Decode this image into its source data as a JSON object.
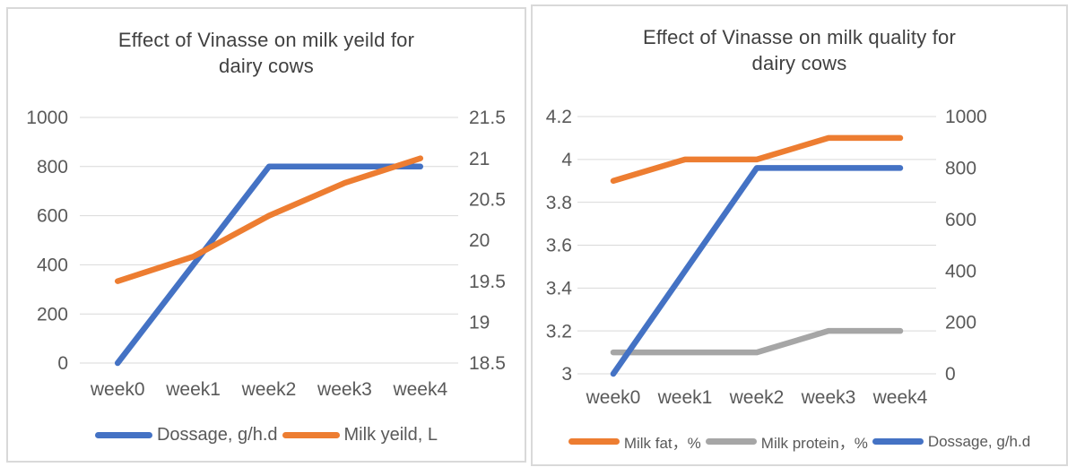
{
  "page": {
    "background": "#ffffff",
    "panel_border_color": "#d9d9d9"
  },
  "colors": {
    "accent_blue": "#4472C4",
    "accent_orange": "#ED7D31",
    "accent_gray": "#A6A6A6",
    "gridline": "#D9D9D9",
    "tick_text": "#595959",
    "title_text": "#404040"
  },
  "chart_data": [
    {
      "type": "line",
      "title": "Effect of Vinasse on milk yeild for dairy cows",
      "title_lines": [
        "Effect of Vinasse on milk yeild for",
        "dairy cows"
      ],
      "categories": [
        "week0",
        "week1",
        "week2",
        "week3",
        "week4"
      ],
      "series": [
        {
          "name": "Dossage, g/h.d",
          "color": "#4472C4",
          "axis": "left",
          "values": [
            0,
            400,
            800,
            800,
            800
          ]
        },
        {
          "name": "Milk yeild, L",
          "color": "#ED7D31",
          "axis": "right",
          "values": [
            19.5,
            19.8,
            20.3,
            20.7,
            21
          ]
        }
      ],
      "left_axis": {
        "min": 0,
        "max": 1000,
        "step": 200,
        "ticks_top_to_bottom": [
          "1000",
          "800",
          "600",
          "400",
          "200",
          "0"
        ]
      },
      "right_axis": {
        "min": 18.5,
        "max": 21.5,
        "step": 0.5,
        "ticks_top_to_bottom": [
          "21.5",
          "21",
          "20.5",
          "20",
          "19.5",
          "19",
          "18.5"
        ]
      },
      "grid": "horizontal-from-left-axis",
      "legend_position": "bottom"
    },
    {
      "type": "line",
      "title": "Effect of Vinasse on milk quality for dairy cows",
      "title_lines": [
        "Effect of Vinasse on milk quality for",
        "dairy cows"
      ],
      "categories": [
        "week0",
        "week1",
        "week2",
        "week3",
        "week4"
      ],
      "series": [
        {
          "name": "Milk fat，%",
          "color": "#ED7D31",
          "axis": "left",
          "values": [
            3.9,
            4,
            4,
            4.1,
            4.1
          ]
        },
        {
          "name": "Milk protein，%",
          "color": "#A6A6A6",
          "axis": "left",
          "values": [
            3.1,
            3.1,
            3.1,
            3.2,
            3.2
          ]
        },
        {
          "name": "Dossage, g/h.d",
          "color": "#4472C4",
          "axis": "right",
          "values": [
            0,
            400,
            800,
            800,
            800
          ]
        }
      ],
      "left_axis": {
        "min": 3,
        "max": 4.2,
        "step": 0.2,
        "ticks_top_to_bottom": [
          "4.2",
          "4",
          "3.8",
          "3.6",
          "3.4",
          "3.2",
          "3"
        ]
      },
      "right_axis": {
        "min": 0,
        "max": 1000,
        "step": 200,
        "ticks_top_to_bottom": [
          "1000",
          "800",
          "600",
          "400",
          "200",
          "0"
        ]
      },
      "grid": "horizontal-from-left-axis",
      "legend_position": "bottom"
    }
  ]
}
